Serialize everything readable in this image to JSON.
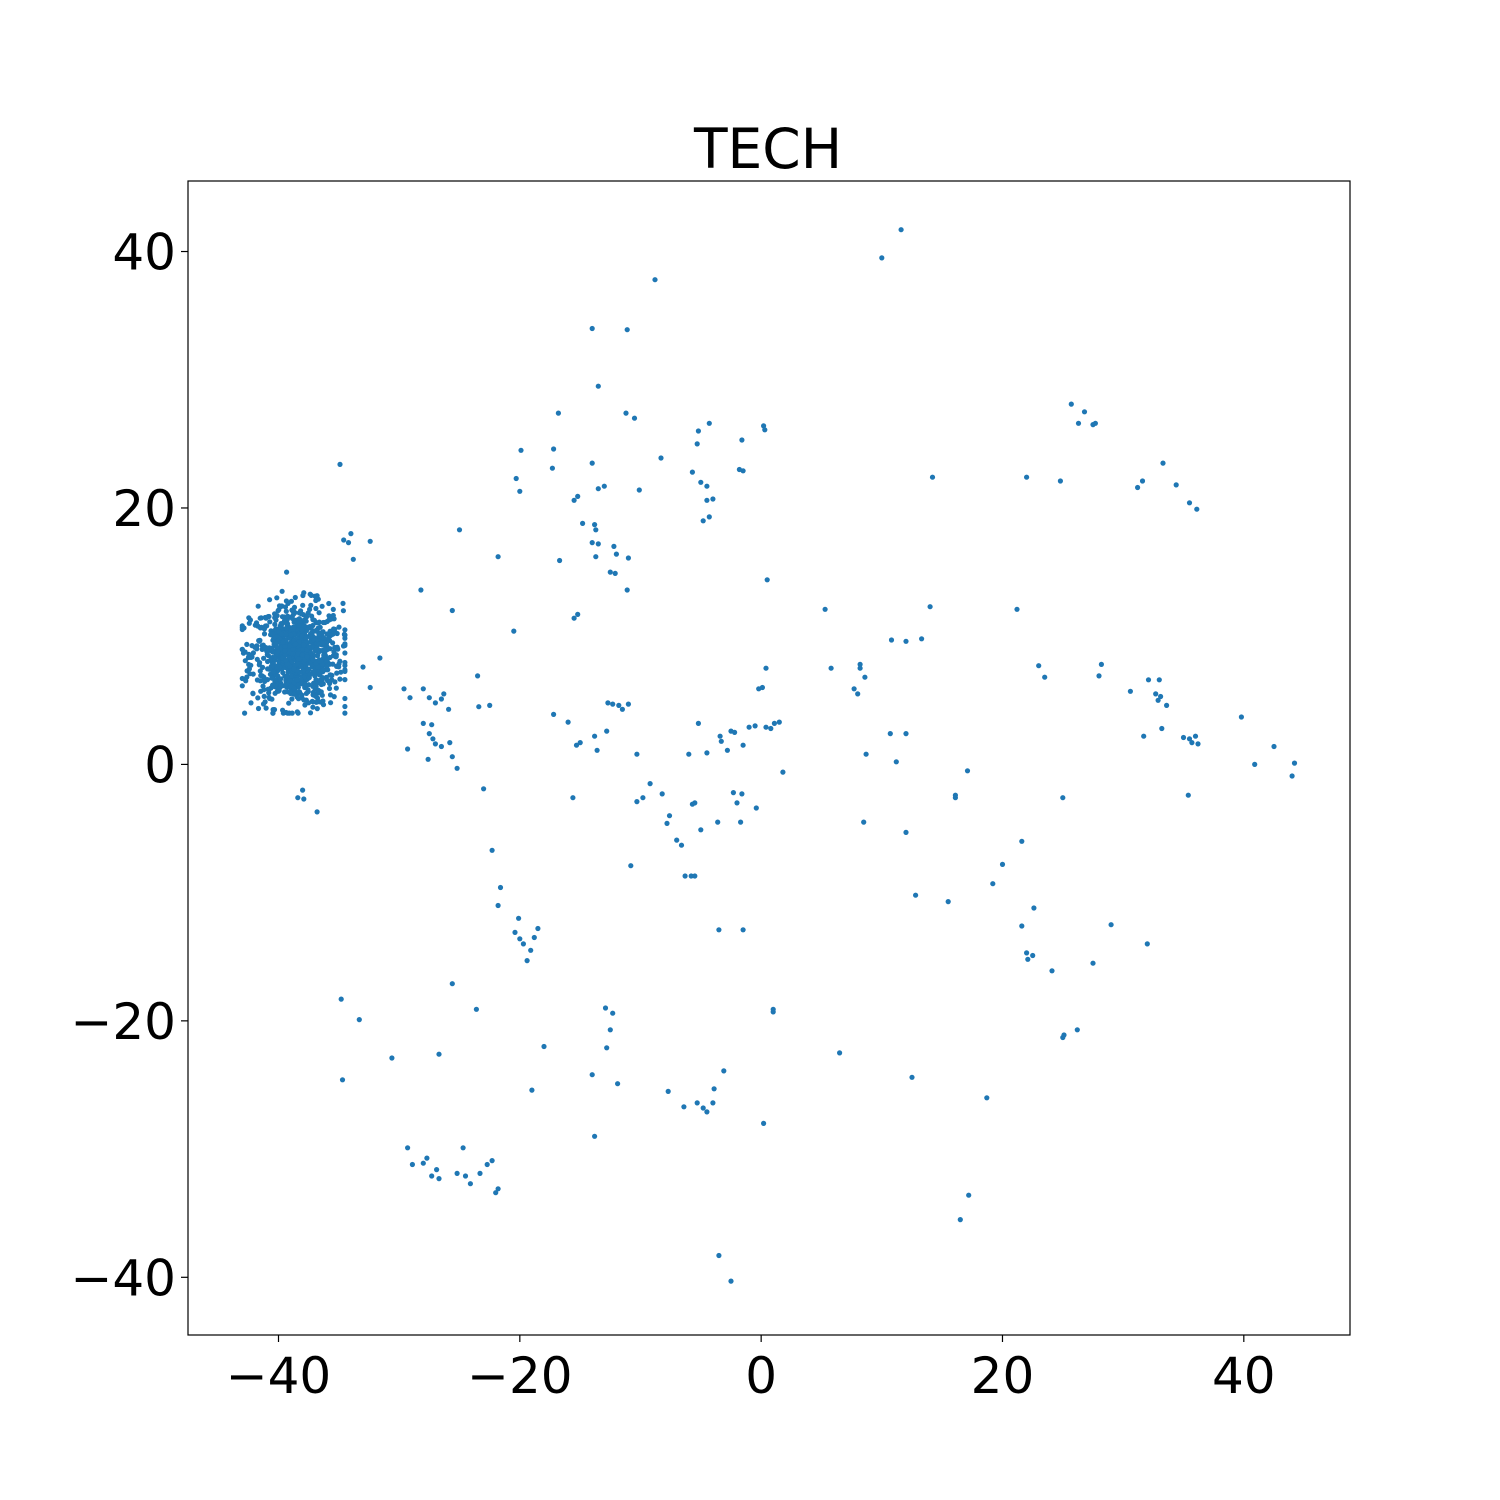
{
  "chart_data": {
    "type": "scatter",
    "title": "TECH",
    "xlabel": "",
    "ylabel": "",
    "xlim": [
      -47.5,
      48.8
    ],
    "ylim": [
      -44.5,
      45.5
    ],
    "xticks": [
      -40,
      -20,
      0,
      20,
      40
    ],
    "yticks": [
      -40,
      -20,
      0,
      20,
      40
    ],
    "xtick_labels": [
      "−40",
      "−20",
      "0",
      "20",
      "40"
    ],
    "ytick_labels": [
      "−40",
      "−20",
      "0",
      "20",
      "40"
    ],
    "grid": false,
    "color": "#1f77b4",
    "cluster": {
      "center": [
        -38.5,
        8.5
      ],
      "count": 900,
      "x_range": [
        -43,
        -34.5
      ],
      "y_range": [
        4,
        15
      ]
    },
    "points": [
      [
        10.0,
        39.5
      ],
      [
        11.6,
        41.7
      ],
      [
        -8.8,
        37.8
      ],
      [
        -14.0,
        34.0
      ],
      [
        -11.1,
        33.9
      ],
      [
        -13.5,
        29.5
      ],
      [
        -16.8,
        27.4
      ],
      [
        -11.2,
        27.4
      ],
      [
        -10.5,
        27.0
      ],
      [
        -4.3,
        26.6
      ],
      [
        -5.2,
        26.0
      ],
      [
        -1.6,
        25.3
      ],
      [
        0.2,
        26.4
      ],
      [
        0.3,
        26.1
      ],
      [
        -17.2,
        24.6
      ],
      [
        -19.9,
        24.5
      ],
      [
        -14.0,
        23.5
      ],
      [
        -17.3,
        23.1
      ],
      [
        -5.3,
        25.0
      ],
      [
        -8.3,
        23.9
      ],
      [
        -5.7,
        22.8
      ],
      [
        -5.0,
        22.0
      ],
      [
        -1.8,
        23.0
      ],
      [
        -1.5,
        22.9
      ],
      [
        -20.3,
        22.3
      ],
      [
        -20.0,
        21.3
      ],
      [
        -13.5,
        21.5
      ],
      [
        -13.0,
        21.7
      ],
      [
        -15.2,
        20.9
      ],
      [
        -15.5,
        20.6
      ],
      [
        -10.1,
        21.4
      ],
      [
        -4.5,
        21.7
      ],
      [
        -4.5,
        20.6
      ],
      [
        -4.0,
        20.7
      ],
      [
        -4.8,
        19.0
      ],
      [
        -4.3,
        19.3
      ],
      [
        -14.8,
        18.8
      ],
      [
        -13.8,
        18.7
      ],
      [
        -13.7,
        18.3
      ],
      [
        -14.0,
        17.3
      ],
      [
        -13.5,
        17.2
      ],
      [
        -12.2,
        17.0
      ],
      [
        -12.0,
        16.4
      ],
      [
        -13.7,
        16.2
      ],
      [
        -16.7,
        15.9
      ],
      [
        -11.0,
        16.1
      ],
      [
        -12.5,
        15.0
      ],
      [
        -12.1,
        14.9
      ],
      [
        -11.1,
        13.6
      ],
      [
        -15.5,
        11.4
      ],
      [
        -15.2,
        11.7
      ],
      [
        -21.8,
        16.2
      ],
      [
        -20.5,
        10.4
      ],
      [
        -25.0,
        18.3
      ],
      [
        -34.6,
        17.5
      ],
      [
        -34.2,
        17.3
      ],
      [
        -34.0,
        18.0
      ],
      [
        -32.4,
        17.4
      ],
      [
        -33.8,
        16.0
      ],
      [
        -34.9,
        23.4
      ],
      [
        -28.2,
        13.6
      ],
      [
        -25.6,
        12.0
      ],
      [
        -33.0,
        7.6
      ],
      [
        -32.4,
        6.0
      ],
      [
        -31.6,
        8.3
      ],
      [
        -29.6,
        5.9
      ],
      [
        -28.0,
        5.9
      ],
      [
        -27.5,
        5.2
      ],
      [
        -27.0,
        4.8
      ],
      [
        -26.5,
        5.1
      ],
      [
        -26.3,
        5.5
      ],
      [
        -25.9,
        4.3
      ],
      [
        -29.1,
        5.2
      ],
      [
        -27.3,
        3.1
      ],
      [
        -28.0,
        3.2
      ],
      [
        -27.5,
        2.4
      ],
      [
        -27.2,
        2.0
      ],
      [
        -27.0,
        1.6
      ],
      [
        -26.5,
        1.4
      ],
      [
        -25.8,
        1.7
      ],
      [
        -25.6,
        0.6
      ],
      [
        -29.3,
        1.2
      ],
      [
        -27.6,
        0.4
      ],
      [
        -25.2,
        -0.3
      ],
      [
        -23.5,
        6.9
      ],
      [
        -23.4,
        4.5
      ],
      [
        -22.5,
        4.6
      ],
      [
        -23.0,
        -1.9
      ],
      [
        -17.2,
        3.9
      ],
      [
        -16.0,
        3.3
      ],
      [
        -15.3,
        1.5
      ],
      [
        -15.0,
        1.7
      ],
      [
        -13.8,
        2.2
      ],
      [
        -13.6,
        1.1
      ],
      [
        -12.8,
        2.6
      ],
      [
        -12.7,
        4.8
      ],
      [
        -12.3,
        4.7
      ],
      [
        -11.8,
        4.6
      ],
      [
        -11.5,
        4.3
      ],
      [
        -11.0,
        4.7
      ],
      [
        -10.3,
        0.8
      ],
      [
        -15.6,
        -2.6
      ],
      [
        -10.3,
        -2.9
      ],
      [
        -9.8,
        -2.6
      ],
      [
        -9.2,
        -1.5
      ],
      [
        -8.2,
        -2.3
      ],
      [
        -7.8,
        -4.6
      ],
      [
        -7.6,
        -4.0
      ],
      [
        -7.0,
        -5.9
      ],
      [
        -6.6,
        -6.3
      ],
      [
        -6.3,
        -8.7
      ],
      [
        -5.8,
        -8.7
      ],
      [
        -5.5,
        -8.7
      ],
      [
        -5.7,
        -3.1
      ],
      [
        -5.5,
        -3.0
      ],
      [
        -5.2,
        3.2
      ],
      [
        -6.0,
        0.8
      ],
      [
        -5.0,
        -5.1
      ],
      [
        -4.5,
        0.9
      ],
      [
        -3.6,
        -4.5
      ],
      [
        -3.4,
        2.2
      ],
      [
        -3.3,
        1.8
      ],
      [
        -2.8,
        1.1
      ],
      [
        -2.5,
        2.6
      ],
      [
        -2.3,
        -2.2
      ],
      [
        -2.0,
        -3.0
      ],
      [
        -1.7,
        -4.5
      ],
      [
        -1.6,
        -2.3
      ],
      [
        -1.5,
        1.5
      ],
      [
        -2.2,
        2.5
      ],
      [
        -1.0,
        2.9
      ],
      [
        -0.5,
        3.0
      ],
      [
        -0.2,
        5.9
      ],
      [
        0.1,
        6.0
      ],
      [
        0.4,
        7.5
      ],
      [
        0.4,
        2.9
      ],
      [
        0.8,
        2.8
      ],
      [
        1.1,
        3.2
      ],
      [
        1.5,
        3.3
      ],
      [
        1.8,
        -0.6
      ],
      [
        0.5,
        14.4
      ],
      [
        -0.4,
        -3.4
      ],
      [
        -10.8,
        -7.9
      ],
      [
        -22.3,
        -6.7
      ],
      [
        -21.6,
        -9.6
      ],
      [
        -21.8,
        -11.0
      ],
      [
        -20.1,
        -12.0
      ],
      [
        -20.4,
        -13.1
      ],
      [
        -20.0,
        -13.6
      ],
      [
        -19.7,
        -14.0
      ],
      [
        -19.4,
        -15.3
      ],
      [
        -19.1,
        -14.5
      ],
      [
        -18.8,
        -13.5
      ],
      [
        -18.5,
        -12.8
      ],
      [
        -18.0,
        -22.0
      ],
      [
        -19.0,
        -25.4
      ],
      [
        -34.8,
        -18.3
      ],
      [
        -33.3,
        -19.9
      ],
      [
        -30.6,
        -22.9
      ],
      [
        -26.7,
        -22.6
      ],
      [
        -25.6,
        -17.1
      ],
      [
        -23.6,
        -19.1
      ],
      [
        -34.7,
        -24.6
      ],
      [
        -29.3,
        -29.9
      ],
      [
        -28.9,
        -31.2
      ],
      [
        -28.0,
        -31.1
      ],
      [
        -27.7,
        -30.7
      ],
      [
        -27.3,
        -32.1
      ],
      [
        -26.9,
        -31.6
      ],
      [
        -26.7,
        -32.3
      ],
      [
        -25.2,
        -31.9
      ],
      [
        -24.7,
        -29.9
      ],
      [
        -24.5,
        -32.1
      ],
      [
        -24.1,
        -32.7
      ],
      [
        -23.3,
        -31.9
      ],
      [
        -22.7,
        -31.2
      ],
      [
        -22.3,
        -30.9
      ],
      [
        -22.0,
        -33.4
      ],
      [
        -21.8,
        -33.1
      ],
      [
        -14.0,
        -24.2
      ],
      [
        -13.8,
        -29.0
      ],
      [
        -12.9,
        -19.0
      ],
      [
        -12.5,
        -20.7
      ],
      [
        -12.3,
        -19.4
      ],
      [
        -12.8,
        -22.1
      ],
      [
        -11.9,
        -24.9
      ],
      [
        -7.7,
        -25.5
      ],
      [
        -6.4,
        -26.7
      ],
      [
        -5.3,
        -26.4
      ],
      [
        -4.8,
        -26.8
      ],
      [
        -4.5,
        -27.1
      ],
      [
        -4.0,
        -26.4
      ],
      [
        -3.9,
        -25.3
      ],
      [
        -3.1,
        -23.9
      ],
      [
        -3.5,
        -12.9
      ],
      [
        -1.5,
        -12.9
      ],
      [
        0.2,
        -28.0
      ],
      [
        -3.5,
        -38.3
      ],
      [
        -2.5,
        -40.3
      ],
      [
        1.0,
        -19.1
      ],
      [
        1.0,
        -19.3
      ],
      [
        5.3,
        12.1
      ],
      [
        5.8,
        7.5
      ],
      [
        7.7,
        5.9
      ],
      [
        8.0,
        5.5
      ],
      [
        8.2,
        7.8
      ],
      [
        8.2,
        7.5
      ],
      [
        8.5,
        -4.5
      ],
      [
        8.6,
        6.8
      ],
      [
        8.7,
        0.8
      ],
      [
        10.8,
        9.7
      ],
      [
        10.7,
        2.4
      ],
      [
        11.2,
        0.2
      ],
      [
        12.0,
        9.6
      ],
      [
        12.0,
        2.4
      ],
      [
        12.0,
        -5.3
      ],
      [
        12.5,
        -24.4
      ],
      [
        12.8,
        -10.2
      ],
      [
        13.3,
        9.8
      ],
      [
        14.0,
        12.3
      ],
      [
        14.2,
        22.4
      ],
      [
        15.5,
        -10.7
      ],
      [
        16.1,
        -2.6
      ],
      [
        16.1,
        -2.4
      ],
      [
        17.1,
        -0.5
      ],
      [
        6.5,
        -22.5
      ],
      [
        16.5,
        -35.5
      ],
      [
        17.2,
        -33.6
      ],
      [
        18.7,
        -26.0
      ],
      [
        19.2,
        -9.3
      ],
      [
        20.0,
        -7.8
      ],
      [
        21.2,
        12.1
      ],
      [
        21.6,
        -6.0
      ],
      [
        21.6,
        -12.6
      ],
      [
        22.0,
        -14.7
      ],
      [
        22.0,
        22.4
      ],
      [
        22.1,
        -15.2
      ],
      [
        22.5,
        -14.9
      ],
      [
        22.6,
        -11.2
      ],
      [
        23.0,
        7.7
      ],
      [
        23.5,
        6.8
      ],
      [
        24.1,
        -16.1
      ],
      [
        24.8,
        22.1
      ],
      [
        25.0,
        -21.3
      ],
      [
        25.1,
        -21.1
      ],
      [
        26.2,
        -20.7
      ],
      [
        25.0,
        -2.6
      ],
      [
        25.7,
        28.1
      ],
      [
        26.3,
        26.6
      ],
      [
        26.8,
        27.5
      ],
      [
        27.5,
        26.5
      ],
      [
        27.7,
        26.6
      ],
      [
        27.5,
        -15.5
      ],
      [
        28.0,
        6.9
      ],
      [
        28.2,
        7.8
      ],
      [
        29.0,
        -12.5
      ],
      [
        30.6,
        5.7
      ],
      [
        31.2,
        21.6
      ],
      [
        31.6,
        22.1
      ],
      [
        31.7,
        2.2
      ],
      [
        32.1,
        6.6
      ],
      [
        32.0,
        -14.0
      ],
      [
        32.7,
        5.5
      ],
      [
        32.9,
        5.0
      ],
      [
        33.1,
        5.3
      ],
      [
        33.0,
        6.6
      ],
      [
        33.2,
        2.8
      ],
      [
        33.3,
        23.5
      ],
      [
        33.6,
        4.6
      ],
      [
        34.4,
        21.8
      ],
      [
        35.0,
        2.1
      ],
      [
        35.4,
        -2.4
      ],
      [
        35.5,
        20.4
      ],
      [
        35.5,
        2.0
      ],
      [
        35.7,
        1.7
      ],
      [
        36.1,
        19.9
      ],
      [
        36.0,
        2.2
      ],
      [
        36.2,
        1.6
      ],
      [
        39.8,
        3.7
      ],
      [
        40.9,
        0.0
      ],
      [
        42.5,
        1.4
      ],
      [
        44.0,
        -0.9
      ],
      [
        44.2,
        0.1
      ],
      [
        -38.0,
        -2.0
      ],
      [
        -38.4,
        -2.6
      ],
      [
        -37.9,
        -2.7
      ],
      [
        -36.8,
        -3.7
      ]
    ]
  }
}
